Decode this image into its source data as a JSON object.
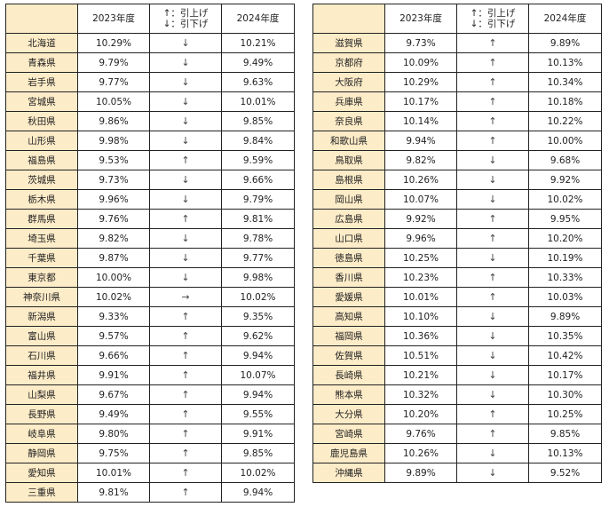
{
  "header": {
    "year_2023": "2023年度",
    "legend_up": "↑：引上げ",
    "legend_down": "↓：引下げ",
    "year_2024": "2024年度"
  },
  "left_table": [
    {
      "pref": "北海道",
      "y2023": "10.29%",
      "arrow": "↓",
      "y2024": "10.21%"
    },
    {
      "pref": "青森県",
      "y2023": "9.79%",
      "arrow": "↓",
      "y2024": "9.49%"
    },
    {
      "pref": "岩手県",
      "y2023": "9.77%",
      "arrow": "↓",
      "y2024": "9.63%"
    },
    {
      "pref": "宮城県",
      "y2023": "10.05%",
      "arrow": "↓",
      "y2024": "10.01%"
    },
    {
      "pref": "秋田県",
      "y2023": "9.86%",
      "arrow": "↓",
      "y2024": "9.85%"
    },
    {
      "pref": "山形県",
      "y2023": "9.98%",
      "arrow": "↓",
      "y2024": "9.84%"
    },
    {
      "pref": "福島県",
      "y2023": "9.53%",
      "arrow": "↑",
      "y2024": "9.59%"
    },
    {
      "pref": "茨城県",
      "y2023": "9.73%",
      "arrow": "↓",
      "y2024": "9.66%"
    },
    {
      "pref": "栃木県",
      "y2023": "9.96%",
      "arrow": "↓",
      "y2024": "9.79%"
    },
    {
      "pref": "群馬県",
      "y2023": "9.76%",
      "arrow": "↑",
      "y2024": "9.81%"
    },
    {
      "pref": "埼玉県",
      "y2023": "9.82%",
      "arrow": "↓",
      "y2024": "9.78%"
    },
    {
      "pref": "千葉県",
      "y2023": "9.87%",
      "arrow": "↓",
      "y2024": "9.77%"
    },
    {
      "pref": "東京都",
      "y2023": "10.00%",
      "arrow": "↓",
      "y2024": "9.98%"
    },
    {
      "pref": "神奈川県",
      "y2023": "10.02%",
      "arrow": "→",
      "y2024": "10.02%"
    },
    {
      "pref": "新潟県",
      "y2023": "9.33%",
      "arrow": "↑",
      "y2024": "9.35%"
    },
    {
      "pref": "富山県",
      "y2023": "9.57%",
      "arrow": "↑",
      "y2024": "9.62%"
    },
    {
      "pref": "石川県",
      "y2023": "9.66%",
      "arrow": "↑",
      "y2024": "9.94%"
    },
    {
      "pref": "福井県",
      "y2023": "9.91%",
      "arrow": "↑",
      "y2024": "10.07%"
    },
    {
      "pref": "山梨県",
      "y2023": "9.67%",
      "arrow": "↑",
      "y2024": "9.94%"
    },
    {
      "pref": "長野県",
      "y2023": "9.49%",
      "arrow": "↑",
      "y2024": "9.55%"
    },
    {
      "pref": "岐阜県",
      "y2023": "9.80%",
      "arrow": "↑",
      "y2024": "9.91%"
    },
    {
      "pref": "静岡県",
      "y2023": "9.75%",
      "arrow": "↑",
      "y2024": "9.85%"
    },
    {
      "pref": "愛知県",
      "y2023": "10.01%",
      "arrow": "↑",
      "y2024": "10.02%"
    },
    {
      "pref": "三重県",
      "y2023": "9.81%",
      "arrow": "↑",
      "y2024": "9.94%"
    }
  ],
  "right_table": [
    {
      "pref": "滋賀県",
      "y2023": "9.73%",
      "arrow": "↑",
      "y2024": "9.89%"
    },
    {
      "pref": "京都府",
      "y2023": "10.09%",
      "arrow": "↑",
      "y2024": "10.13%"
    },
    {
      "pref": "大阪府",
      "y2023": "10.29%",
      "arrow": "↑",
      "y2024": "10.34%"
    },
    {
      "pref": "兵庫県",
      "y2023": "10.17%",
      "arrow": "↑",
      "y2024": "10.18%"
    },
    {
      "pref": "奈良県",
      "y2023": "10.14%",
      "arrow": "↑",
      "y2024": "10.22%"
    },
    {
      "pref": "和歌山県",
      "y2023": "9.94%",
      "arrow": "↑",
      "y2024": "10.00%"
    },
    {
      "pref": "鳥取県",
      "y2023": "9.82%",
      "arrow": "↓",
      "y2024": "9.68%"
    },
    {
      "pref": "島根県",
      "y2023": "10.26%",
      "arrow": "↓",
      "y2024": "9.92%"
    },
    {
      "pref": "岡山県",
      "y2023": "10.07%",
      "arrow": "↓",
      "y2024": "10.02%"
    },
    {
      "pref": "広島県",
      "y2023": "9.92%",
      "arrow": "↑",
      "y2024": "9.95%"
    },
    {
      "pref": "山口県",
      "y2023": "9.96%",
      "arrow": "↑",
      "y2024": "10.20%"
    },
    {
      "pref": "徳島県",
      "y2023": "10.25%",
      "arrow": "↓",
      "y2024": "10.19%"
    },
    {
      "pref": "香川県",
      "y2023": "10.23%",
      "arrow": "↑",
      "y2024": "10.33%"
    },
    {
      "pref": "愛媛県",
      "y2023": "10.01%",
      "arrow": "↑",
      "y2024": "10.03%"
    },
    {
      "pref": "高知県",
      "y2023": "10.10%",
      "arrow": "↓",
      "y2024": "9.89%"
    },
    {
      "pref": "福岡県",
      "y2023": "10.36%",
      "arrow": "↓",
      "y2024": "10.35%"
    },
    {
      "pref": "佐賀県",
      "y2023": "10.51%",
      "arrow": "↓",
      "y2024": "10.42%"
    },
    {
      "pref": "長崎県",
      "y2023": "10.21%",
      "arrow": "↓",
      "y2024": "10.17%"
    },
    {
      "pref": "熊本県",
      "y2023": "10.32%",
      "arrow": "↓",
      "y2024": "10.30%"
    },
    {
      "pref": "大分県",
      "y2023": "10.20%",
      "arrow": "↑",
      "y2024": "10.25%"
    },
    {
      "pref": "宮崎県",
      "y2023": "9.76%",
      "arrow": "↑",
      "y2024": "9.85%"
    },
    {
      "pref": "鹿児島県",
      "y2023": "10.26%",
      "arrow": "↓",
      "y2024": "10.13%"
    },
    {
      "pref": "沖縄県",
      "y2023": "9.89%",
      "arrow": "↓",
      "y2024": "9.52%"
    }
  ],
  "colors": {
    "pref_cell_bg": "#fdecc8",
    "border": "#222222"
  }
}
